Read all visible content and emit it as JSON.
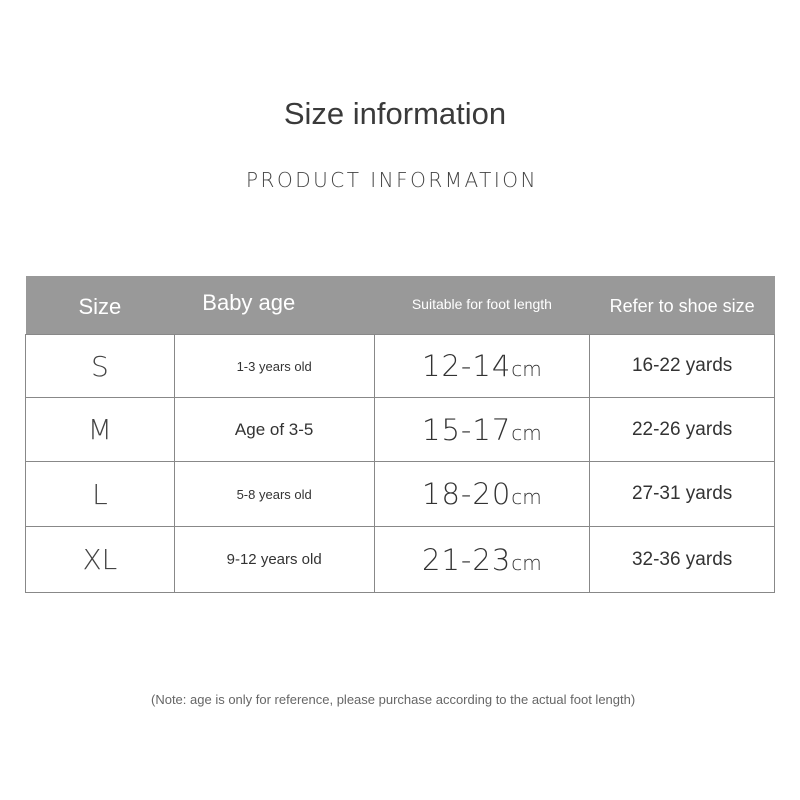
{
  "title": "Size information",
  "subtitle": "PRODUCT INFORMATION",
  "table": {
    "headers": [
      "Size",
      "Baby age",
      "Suitable for foot length",
      "Refer to shoe size"
    ],
    "rows": [
      {
        "size": "S",
        "age": "1-3 years old",
        "foot": "12-14",
        "unit": "cm",
        "shoe": "16-22 yards"
      },
      {
        "size": "M",
        "age": "Age of 3-5",
        "foot": "15-17",
        "unit": "cm",
        "shoe": "22-26 yards"
      },
      {
        "size": "L",
        "age": "5-8 years old",
        "foot": "18-20",
        "unit": "cm",
        "shoe": "27-31 yards"
      },
      {
        "size": "XL",
        "age": "9-12 years old",
        "foot": "21-23",
        "unit": "cm",
        "shoe": "32-36 yards"
      }
    ]
  },
  "note": "(Note: age is only for reference, please purchase according to the actual foot length)",
  "colors": {
    "header_bg": "#999999",
    "border": "#888888"
  }
}
